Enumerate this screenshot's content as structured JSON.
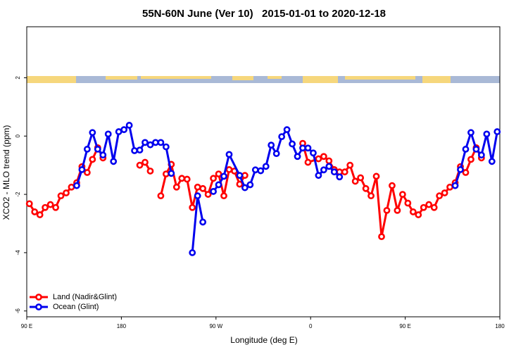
{
  "chart_data": {
    "type": "line",
    "title": "55N-60N June (Ver 10)   2015-01-01 to 2020-12-18",
    "x_label": "Longitude (deg E)",
    "y_label": "XCO2 - MLO trend (ppm)",
    "xlim": [
      90,
      540
    ],
    "xticks": [
      {
        "value": 90,
        "label": "90 E"
      },
      180,
      {
        "value": 270,
        "label": "90 W"
      },
      {
        "value": 360,
        "label": "0"
      },
      {
        "value": 450,
        "label": "90 E"
      },
      {
        "value": 540,
        "label": "180"
      }
    ],
    "ylim": [
      -6.2,
      3.75
    ],
    "yticks": [
      -6,
      -4,
      -2,
      0,
      2
    ],
    "legend": "bottom-left",
    "series": [
      {
        "name": "Land (Nadir&Glint)",
        "color": "#ff0000",
        "x": [
          92.5,
          97.5,
          102.5,
          107.5,
          112.5,
          117.5,
          122.5,
          127.5,
          132.5,
          137.5,
          142.5,
          147.5,
          152.5,
          157.5,
          162.5,
          167.5,
          197.5,
          202.5,
          207.5,
          212.5,
          217.5,
          222.5,
          227.5,
          232.5,
          237.5,
          242.5,
          247.5,
          252.5,
          257.5,
          262.5,
          267.5,
          272.5,
          277.5,
          282.5,
          287.5,
          292.5,
          297.5,
          302.5,
          352.5,
          357.5,
          367.5,
          372.5,
          377.5,
          382.5,
          387.5,
          392.5,
          397.5,
          402.5,
          407.5,
          412.5,
          417.5,
          422.5,
          427.5,
          432.5,
          437.5,
          442.5,
          447.5,
          452.5,
          457.5,
          462.5,
          467.5,
          472.5,
          477.5,
          482.5,
          487.5,
          492.5,
          497.5,
          502.5,
          507.5,
          512.5,
          517.5,
          522.5
        ],
        "values": [
          -2.32,
          -2.6,
          -2.7,
          -2.45,
          -2.35,
          -2.45,
          -2.05,
          -1.95,
          -1.75,
          -1.6,
          -1.05,
          -1.25,
          -0.8,
          -0.4,
          -0.75,
          null,
          -1.0,
          -0.9,
          -1.2,
          null,
          -2.05,
          -1.3,
          -0.97,
          -1.75,
          -1.45,
          -1.48,
          -2.45,
          -1.75,
          -1.8,
          -2.0,
          -1.45,
          -1.3,
          -2.05,
          -1.15,
          -1.2,
          -1.65,
          -1.35,
          null,
          -0.25,
          -0.9,
          -0.78,
          -0.7,
          -0.85,
          -1.15,
          -1.23,
          -1.23,
          -1.0,
          -1.55,
          -1.43,
          -1.8,
          -2.05,
          -1.38,
          -3.45,
          -2.55,
          -1.7,
          -2.55,
          -2.0,
          -2.3,
          -2.6,
          -2.7,
          -2.45,
          -2.35,
          -2.45,
          -2.05,
          -1.95,
          -1.75,
          -1.6,
          -1.05,
          -1.25,
          -0.8,
          -0.4,
          -0.75
        ]
      },
      {
        "name": "Ocean (Glint)",
        "color": "#0000ee",
        "x": [
          137.5,
          142.5,
          147.5,
          152.5,
          157.5,
          162.5,
          167.5,
          172.5,
          177.5,
          182.5,
          187.5,
          192.5,
          197.5,
          202.5,
          207.5,
          212.5,
          217.5,
          222.5,
          227.5,
          232.5,
          247.5,
          252.5,
          257.5,
          262.5,
          267.5,
          272.5,
          277.5,
          282.5,
          292.5,
          297.5,
          302.5,
          307.5,
          312.5,
          317.5,
          322.5,
          327.5,
          332.5,
          337.5,
          342.5,
          347.5,
          352.5,
          357.5,
          362.5,
          367.5,
          372.5,
          377.5,
          382.5,
          387.5,
          392.5,
          497.5,
          502.5,
          507.5,
          512.5,
          517.5,
          522.5,
          527.5,
          532.5,
          537.5
        ],
        "values": [
          -1.7,
          -1.15,
          -0.45,
          0.12,
          -0.45,
          -0.65,
          0.07,
          -0.87,
          0.15,
          0.22,
          0.37,
          -0.5,
          -0.48,
          -0.22,
          -0.3,
          -0.22,
          -0.22,
          -0.37,
          -1.28,
          null,
          -4.0,
          -2.05,
          -2.95,
          null,
          -1.9,
          -1.67,
          -1.38,
          -0.63,
          -1.35,
          -1.77,
          -1.67,
          -1.16,
          -1.19,
          -1.04,
          -0.31,
          -0.6,
          -0.02,
          0.22,
          -0.27,
          -0.7,
          -0.41,
          -0.41,
          -0.58,
          -1.35,
          -1.16,
          -1.04,
          -1.23,
          -1.4,
          null,
          -1.7,
          -1.15,
          -0.45,
          0.12,
          -0.45,
          -0.65,
          0.07,
          -0.87,
          0.15
        ]
      }
    ]
  }
}
